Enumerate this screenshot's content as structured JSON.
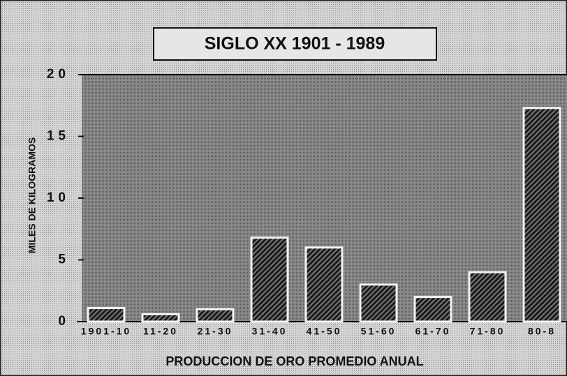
{
  "chart_data": {
    "type": "bar",
    "title": "SIGLO XX 1901 - 1989",
    "ylabel": "MILES DE KILOGRAMOS",
    "xlabel": "PRODUCCION DE ORO PROMEDIO ANUAL",
    "categories": [
      "1901-10",
      "11-20",
      "21-30",
      "31-40",
      "41-50",
      "51-60",
      "61-70",
      "71-80",
      "80-8"
    ],
    "values": [
      1.1,
      0.6,
      1.0,
      6.8,
      6.0,
      3.0,
      2.0,
      4.0,
      17.3
    ],
    "color": "#222222",
    "ylim": [
      0,
      20
    ],
    "yticks": [
      0,
      5,
      10,
      15,
      20
    ]
  }
}
